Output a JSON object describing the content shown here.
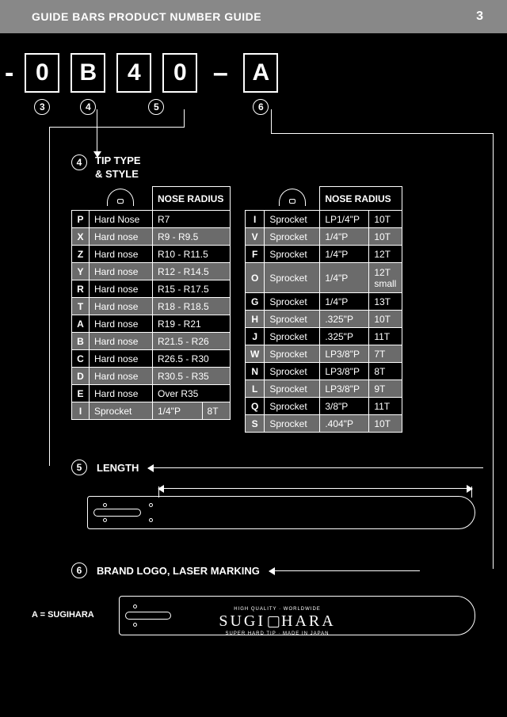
{
  "header": {
    "title": "GUIDE BARS PRODUCT NUMBER GUIDE",
    "page": "3"
  },
  "code": {
    "c1": "0",
    "c2": "B",
    "c3": "4",
    "c4": "0",
    "c5": "A",
    "ref1": "3",
    "ref2": "4",
    "ref3": "5",
    "ref4": "6"
  },
  "section4": {
    "ref": "4",
    "title_l1": "TIP TYPE",
    "title_l2": "& STYLE",
    "nose_header": "NOSE RADIUS",
    "left": [
      {
        "code": "P",
        "type": "Hard Nose",
        "radius": "R7",
        "shade": false
      },
      {
        "code": "X",
        "type": "Hard nose",
        "radius": "R9 - R9.5",
        "shade": true
      },
      {
        "code": "Z",
        "type": "Hard nose",
        "radius": "R10 - R11.5",
        "shade": false
      },
      {
        "code": "Y",
        "type": "Hard nose",
        "radius": "R12 - R14.5",
        "shade": true
      },
      {
        "code": "R",
        "type": "Hard nose",
        "radius": "R15 - R17.5",
        "shade": false
      },
      {
        "code": "T",
        "type": "Hard nose",
        "radius": "R18 - R18.5",
        "shade": true
      },
      {
        "code": "A",
        "type": "Hard nose",
        "radius": "R19 - R21",
        "shade": false
      },
      {
        "code": "B",
        "type": "Hard nose",
        "radius": "R21.5 - R26",
        "shade": true
      },
      {
        "code": "C",
        "type": "Hard nose",
        "radius": "R26.5 - R30",
        "shade": false
      },
      {
        "code": "D",
        "type": "Hard nose",
        "radius": "R30.5 - R35",
        "shade": true
      },
      {
        "code": "E",
        "type": "Hard nose",
        "radius": "Over R35",
        "shade": false
      },
      {
        "code": "I",
        "type": "Sprocket",
        "radius": "1/4\"P",
        "extra": "8T",
        "shade": true
      }
    ],
    "right": [
      {
        "code": "I",
        "type": "Sprocket",
        "pitch": "LP1/4\"P",
        "teeth": "10T",
        "shade": false
      },
      {
        "code": "V",
        "type": "Sprocket",
        "pitch": "1/4\"P",
        "teeth": "10T",
        "shade": true
      },
      {
        "code": "F",
        "type": "Sprocket",
        "pitch": "1/4\"P",
        "teeth": "12T",
        "shade": false
      },
      {
        "code": "O",
        "type": "Sprocket",
        "pitch": "1/4\"P",
        "teeth": "12T small",
        "shade": true,
        "tall": true
      },
      {
        "code": "G",
        "type": "Sprocket",
        "pitch": "1/4\"P",
        "teeth": "13T",
        "shade": false
      },
      {
        "code": "H",
        "type": "Sprocket",
        "pitch": ".325\"P",
        "teeth": "10T",
        "shade": true
      },
      {
        "code": "J",
        "type": "Sprocket",
        "pitch": ".325\"P",
        "teeth": "11T",
        "shade": false
      },
      {
        "code": "W",
        "type": "Sprocket",
        "pitch": "LP3/8\"P",
        "teeth": "7T",
        "shade": true
      },
      {
        "code": "N",
        "type": "Sprocket",
        "pitch": "LP3/8\"P",
        "teeth": "8T",
        "shade": false
      },
      {
        "code": "L",
        "type": "Sprocket",
        "pitch": "LP3/8\"P",
        "teeth": "9T",
        "shade": true
      },
      {
        "code": "Q",
        "type": "Sprocket",
        "pitch": "3/8\"P",
        "teeth": "11T",
        "shade": false
      },
      {
        "code": "S",
        "type": "Sprocket",
        "pitch": ".404\"P",
        "teeth": "10T",
        "shade": true
      }
    ]
  },
  "section5": {
    "ref": "5",
    "title": "LENGTH"
  },
  "section6": {
    "ref": "6",
    "title": "BRAND LOGO, LASER MARKING",
    "note": "A = SUGIHARA",
    "brand_top": "HIGH QUALITY · WORLDWIDE",
    "brand_main_l": "SUGI",
    "brand_main_r": "HARA",
    "brand_sub": "SUPER HARD TIP · MADE IN JAPAN"
  },
  "colors": {
    "bg": "#000000",
    "fg": "#ffffff",
    "header": "#888888",
    "shade": "#6b6b6b"
  }
}
